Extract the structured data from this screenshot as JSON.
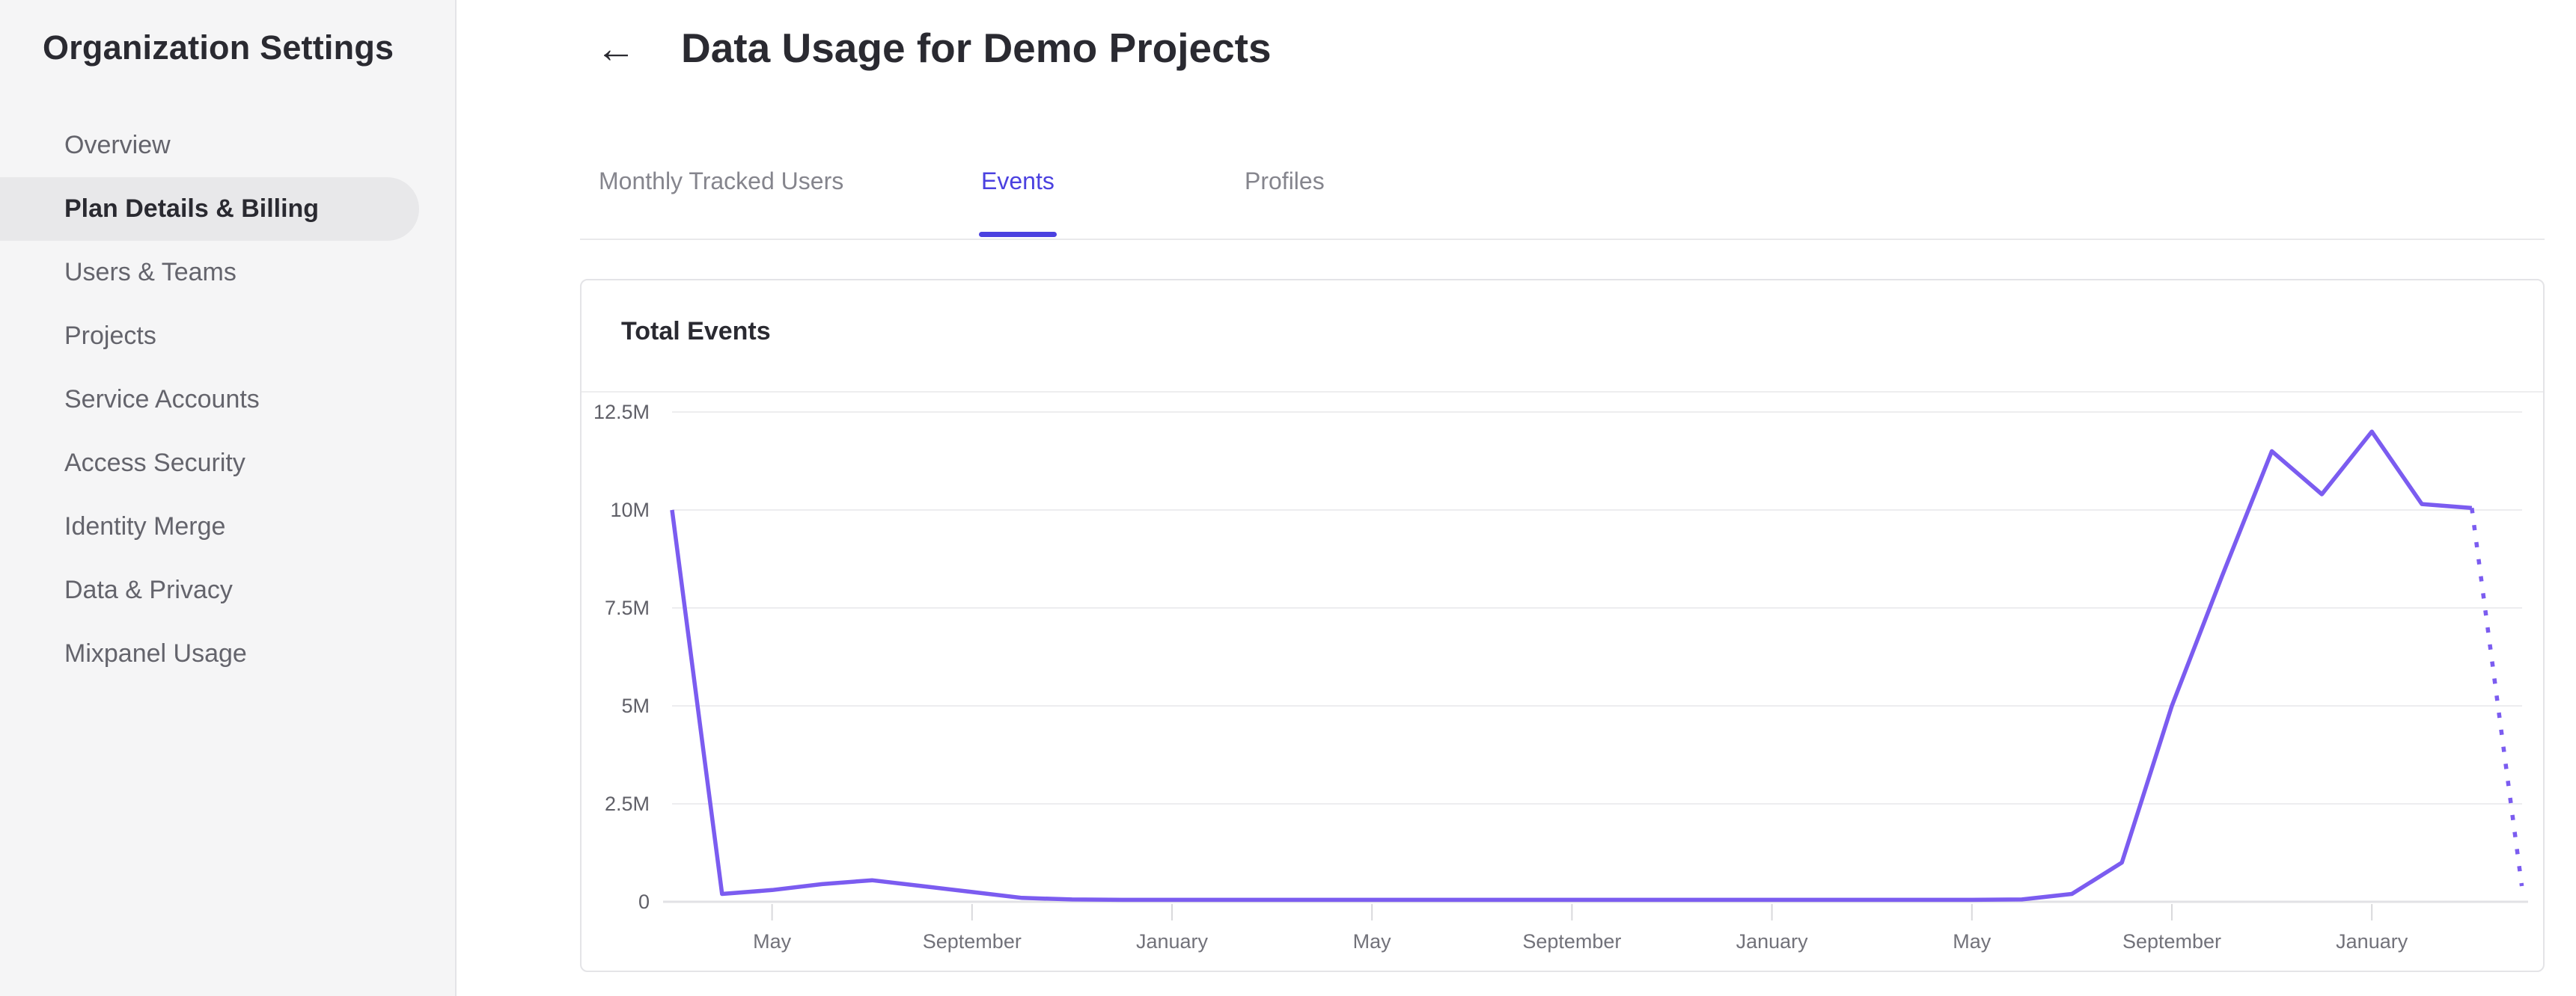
{
  "sidebar": {
    "title": "Organization Settings",
    "items": [
      {
        "label": "Overview",
        "selected": false
      },
      {
        "label": "Plan Details & Billing",
        "selected": true
      },
      {
        "label": "Users & Teams",
        "selected": false
      },
      {
        "label": "Projects",
        "selected": false
      },
      {
        "label": "Service Accounts",
        "selected": false
      },
      {
        "label": "Access Security",
        "selected": false
      },
      {
        "label": "Identity Merge",
        "selected": false
      },
      {
        "label": "Data & Privacy",
        "selected": false
      },
      {
        "label": "Mixpanel Usage",
        "selected": false
      }
    ]
  },
  "header": {
    "back_icon": "←",
    "title": "Data Usage for Demo Projects"
  },
  "tabs": [
    {
      "label": "Monthly Tracked Users",
      "active": false
    },
    {
      "label": "Events",
      "active": true
    },
    {
      "label": "Profiles",
      "active": false
    }
  ],
  "card": {
    "title": "Total Events"
  },
  "colors": {
    "accent": "#4b41e0",
    "line": "#7b5cf0",
    "gridline": "#ededef",
    "axis_line": "#e2e2e5",
    "tick": "#d9d9dc",
    "text_dark": "#2a2a31",
    "text_gray": "#64646c",
    "tab_inactive": "#85858d",
    "sidebar_bg": "#f5f5f6",
    "selected_pill_bg": "#e8e8ea",
    "card_border": "#e4e4e7"
  },
  "chart_data": {
    "type": "line",
    "title": "Total Events",
    "x_axis": {
      "granularity": "monthly",
      "num_points": 38,
      "tick_labels": [
        "May",
        "September",
        "January",
        "May",
        "September",
        "January",
        "May",
        "September",
        "January"
      ],
      "tick_point_indices": [
        2,
        6,
        10,
        14,
        18,
        22,
        26,
        30,
        34
      ]
    },
    "y_axis": {
      "tick_labels": [
        "0",
        "2.5M",
        "5M",
        "7.5M",
        "10M",
        "12.5M"
      ],
      "range_events": [
        0,
        12500000
      ],
      "gridlines": true
    },
    "series": [
      {
        "name": "Total Events",
        "color": "#7b5cf0",
        "values_millions": [
          10,
          0.2,
          0.3,
          0.45,
          0.55,
          0.4,
          0.25,
          0.1,
          0.06,
          0.05,
          0.05,
          0.05,
          0.05,
          0.05,
          0.05,
          0.05,
          0.05,
          0.05,
          0.05,
          0.05,
          0.05,
          0.05,
          0.05,
          0.05,
          0.05,
          0.05,
          0.05,
          0.06,
          0.2,
          1.0,
          5.0,
          8.3,
          11.5,
          10.4,
          12.0,
          10.15,
          10.05,
          0.4
        ],
        "solid_through_index": 36,
        "dotted_projection_from_index": 36
      }
    ],
    "legend": "none"
  }
}
